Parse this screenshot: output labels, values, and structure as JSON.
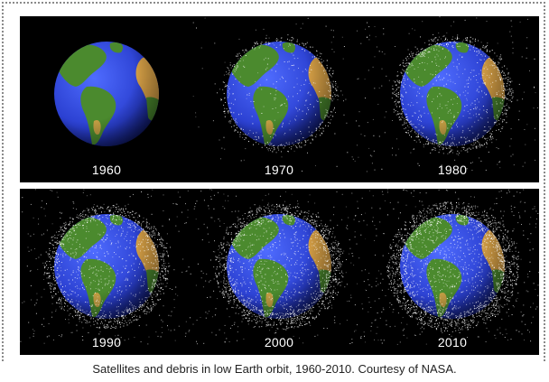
{
  "caption": "Satellites and debris in low Earth orbit, 1960-2010.  Courtesy of NASA.",
  "colors": {
    "space": "#000000",
    "ocean": "#2a3fd0",
    "land_green": "#4b8a2e",
    "land_desert": "#d7a046",
    "debris": "#ffffff"
  },
  "panels": [
    {
      "year": "1960",
      "debris_density": 0.0
    },
    {
      "year": "1970",
      "debris_density": 0.25
    },
    {
      "year": "1980",
      "debris_density": 0.45
    },
    {
      "year": "1990",
      "debris_density": 0.65
    },
    {
      "year": "2000",
      "debris_density": 0.8
    },
    {
      "year": "2010",
      "debris_density": 1.0
    }
  ]
}
